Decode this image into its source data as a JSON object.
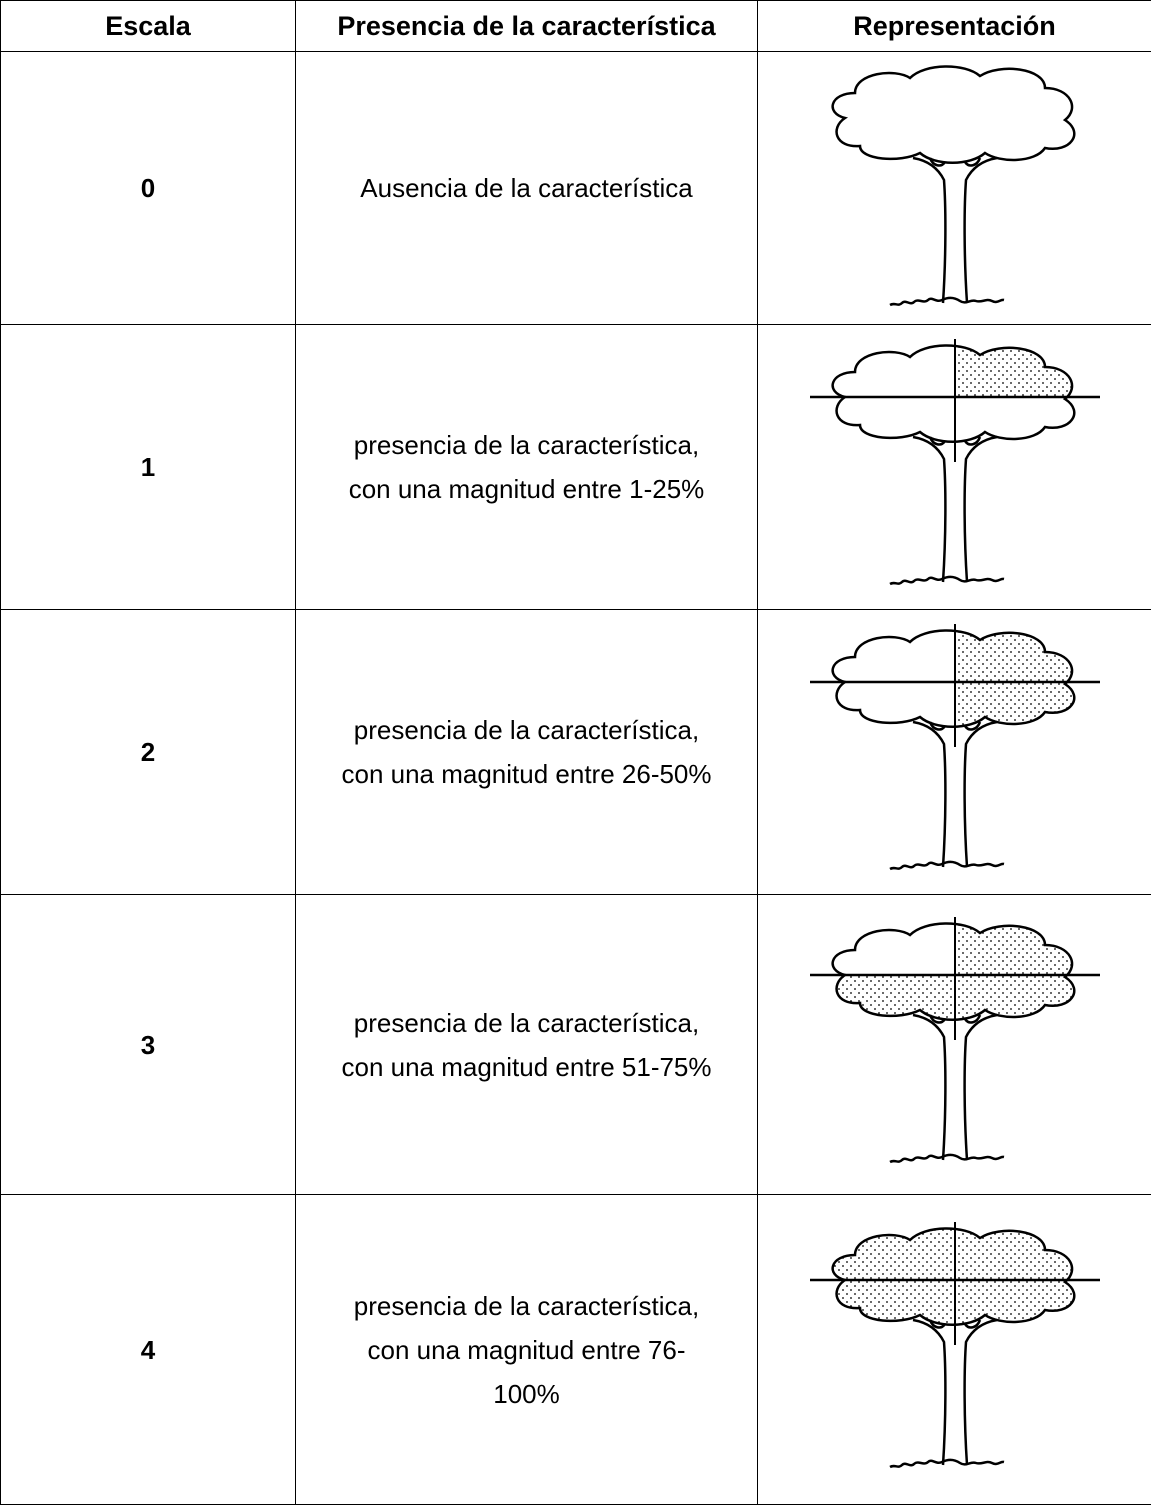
{
  "table": {
    "header": [
      "Escala",
      "Presencia de la característica",
      "Representación"
    ],
    "rows": [
      [
        0,
        "Ausencia de la característica"
      ],
      [
        1,
        "presencia de la característica, con una magnitud entre 1-25%"
      ],
      [
        2,
        "presencia de la característica, con una magnitud entre 26-50%"
      ],
      [
        3,
        "presencia de la característica, con una magnitud entre 51-75%"
      ],
      [
        4,
        "presencia de la característica, con una magnitud entre 76-100%"
      ]
    ]
  }
}
